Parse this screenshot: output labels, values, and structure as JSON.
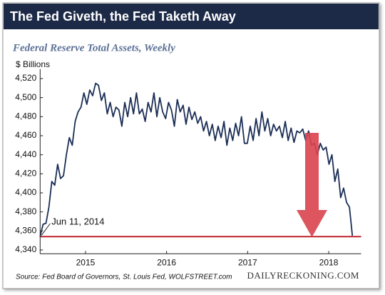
{
  "chart_data": {
    "type": "line",
    "title": "The Fed Giveth, the Fed Taketh Away",
    "subtitle": "Federal Reserve Total Assets, Weekly",
    "y_label": "$ Billions",
    "annotation": "Jun 11, 2014",
    "reference_line": 4354,
    "source": "Source: Fed Board of Governors, St. Louis Fed, WOLFSTREET.com",
    "credit": "DAILYRECKONING.COM",
    "xlim": [
      2014.44,
      2018.4
    ],
    "xticks": [
      2015,
      2016,
      2017,
      2018
    ],
    "ylim": [
      4336,
      4530
    ],
    "yticks": [
      {
        "value": 4340,
        "label": "4,340"
      },
      {
        "value": 4360,
        "label": "4,360"
      },
      {
        "value": 4380,
        "label": "4,380"
      },
      {
        "value": 4400,
        "label": "4,400"
      },
      {
        "value": 4420,
        "label": "4,420"
      },
      {
        "value": 4440,
        "label": "4,440"
      },
      {
        "value": 4460,
        "label": "4,460"
      },
      {
        "value": 4480,
        "label": "4,480"
      },
      {
        "value": 4500,
        "label": "4,500"
      },
      {
        "value": 4520,
        "label": "4,520"
      }
    ],
    "grid": false,
    "x": [
      2014.44,
      2014.476,
      2014.512,
      2014.548,
      2014.584,
      2014.62,
      2014.656,
      2014.692,
      2014.728,
      2014.764,
      2014.8,
      2014.836,
      2014.872,
      2014.908,
      2014.944,
      2014.98,
      2015.016,
      2015.052,
      2015.088,
      2015.124,
      2015.16,
      2015.196,
      2015.232,
      2015.268,
      2015.304,
      2015.34,
      2015.376,
      2015.412,
      2015.448,
      2015.484,
      2015.52,
      2015.556,
      2015.592,
      2015.628,
      2015.664,
      2015.7,
      2015.736,
      2015.772,
      2015.808,
      2015.844,
      2015.88,
      2015.916,
      2015.952,
      2015.988,
      2016.024,
      2016.06,
      2016.096,
      2016.132,
      2016.168,
      2016.204,
      2016.24,
      2016.276,
      2016.312,
      2016.348,
      2016.384,
      2016.42,
      2016.456,
      2016.492,
      2016.528,
      2016.564,
      2016.6,
      2016.636,
      2016.672,
      2016.708,
      2016.744,
      2016.78,
      2016.816,
      2016.852,
      2016.888,
      2016.924,
      2016.96,
      2016.996,
      2017.032,
      2017.068,
      2017.104,
      2017.14,
      2017.176,
      2017.212,
      2017.248,
      2017.284,
      2017.32,
      2017.356,
      2017.392,
      2017.428,
      2017.464,
      2017.5,
      2017.536,
      2017.572,
      2017.608,
      2017.644,
      2017.68,
      2017.716,
      2017.752,
      2017.788,
      2017.824,
      2017.86,
      2017.896,
      2017.932,
      2017.968,
      2018.004,
      2018.04,
      2018.076,
      2018.112,
      2018.148,
      2018.184,
      2018.22,
      2018.256,
      2018.292
    ],
    "series": [
      {
        "name": "Federal Reserve Total Assets",
        "color": "#1b2e55",
        "values": [
          4354,
          4367,
          4368,
          4385,
          4412,
          4408,
          4430,
          4415,
          4418,
          4440,
          4458,
          4450,
          4475,
          4485,
          4490,
          4505,
          4493,
          4508,
          4502,
          4515,
          4513,
          4497,
          4505,
          4483,
          4495,
          4480,
          4490,
          4487,
          4470,
          4495,
          4480,
          4500,
          4483,
          4505,
          4483,
          4488,
          4475,
          4495,
          4485,
          4505,
          4480,
          4500,
          4485,
          4478,
          4495,
          4487,
          4470,
          4498,
          4485,
          4492,
          4472,
          4490,
          4477,
          4485,
          4473,
          4480,
          4465,
          4475,
          4460,
          4472,
          4455,
          4470,
          4458,
          4475,
          4450,
          4468,
          4455,
          4473,
          4460,
          4480,
          4452,
          4452,
          4470,
          4455,
          4478,
          4460,
          4485,
          4465,
          4478,
          4460,
          4472,
          4465,
          4470,
          4458,
          4475,
          4455,
          4468,
          4453,
          4465,
          4463,
          4467,
          4455,
          4465,
          4450,
          4452,
          4440,
          4452,
          4445,
          4448,
          4430,
          4440,
          4412,
          4425,
          4395,
          4405,
          4390,
          4385,
          4355
        ]
      }
    ]
  }
}
